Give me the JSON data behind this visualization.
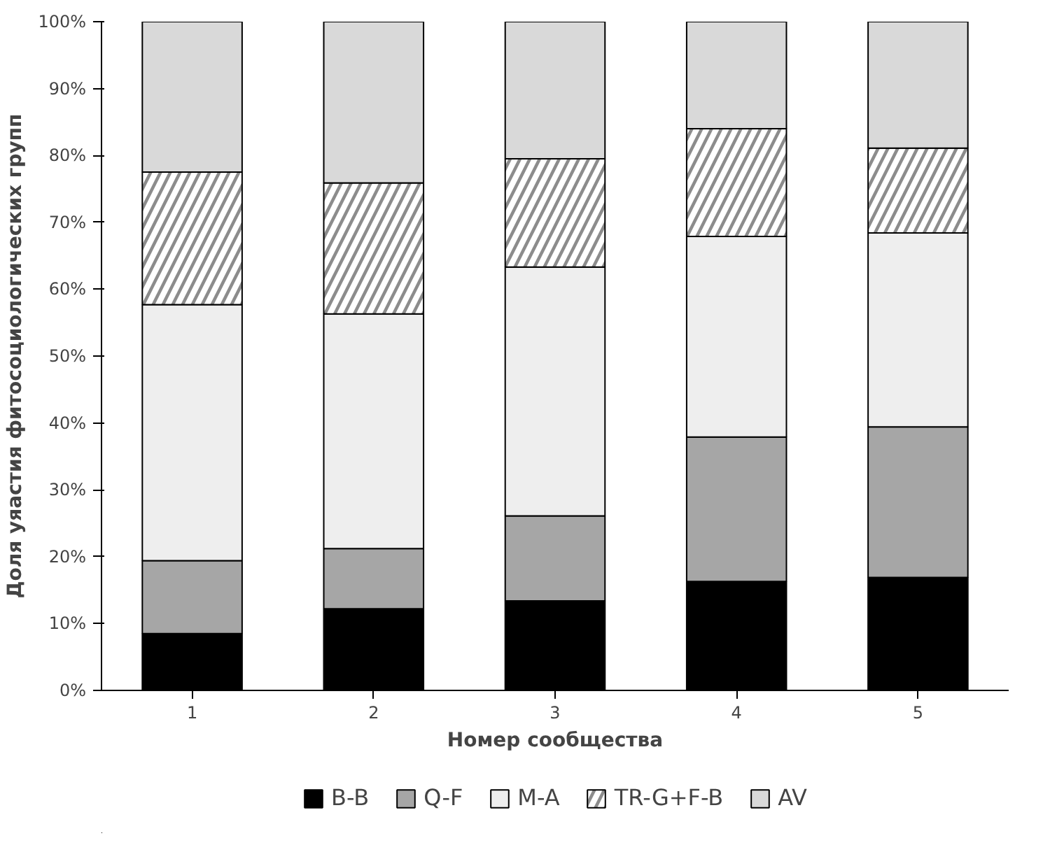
{
  "chart_data": {
    "type": "bar",
    "stacked": true,
    "xlabel": "Номер сообщества",
    "ylabel": "Доля уяастия фитосоциологических групп",
    "categories": [
      "1",
      "2",
      "3",
      "4",
      "5"
    ],
    "series": [
      {
        "name": "B-B",
        "color": "#000000",
        "values": [
          8.5,
          12.2,
          13.4,
          16.3,
          16.9
        ]
      },
      {
        "name": "Q-F",
        "color": "#a6a6a6",
        "values": [
          10.9,
          9.0,
          12.7,
          21.6,
          22.5
        ]
      },
      {
        "name": "M-A",
        "color": "#eeeeee",
        "values": [
          38.3,
          35.1,
          37.2,
          30.0,
          29.0
        ]
      },
      {
        "name": "TR-G+F-B",
        "color": "#8c8c8c",
        "values": [
          19.8,
          19.6,
          16.2,
          16.1,
          12.7
        ]
      },
      {
        "name": "AV",
        "color": "#d9d9d9",
        "values": [
          22.5,
          24.1,
          20.5,
          16.0,
          18.9
        ]
      }
    ],
    "ylim": [
      0,
      100
    ],
    "yticks": [
      {
        "value": 0,
        "label": "0%"
      },
      {
        "value": 10,
        "label": "10%"
      },
      {
        "value": 20,
        "label": "20%"
      },
      {
        "value": 30,
        "label": "30%"
      },
      {
        "value": 40,
        "label": "40%"
      },
      {
        "value": 50,
        "label": "50%"
      },
      {
        "value": 60,
        "label": "60%"
      },
      {
        "value": 70,
        "label": "70%"
      },
      {
        "value": 80,
        "label": "80%"
      },
      {
        "value": 90,
        "label": "90%"
      },
      {
        "value": 100,
        "label": "100%"
      }
    ],
    "grid": false,
    "legend": "bottom"
  }
}
